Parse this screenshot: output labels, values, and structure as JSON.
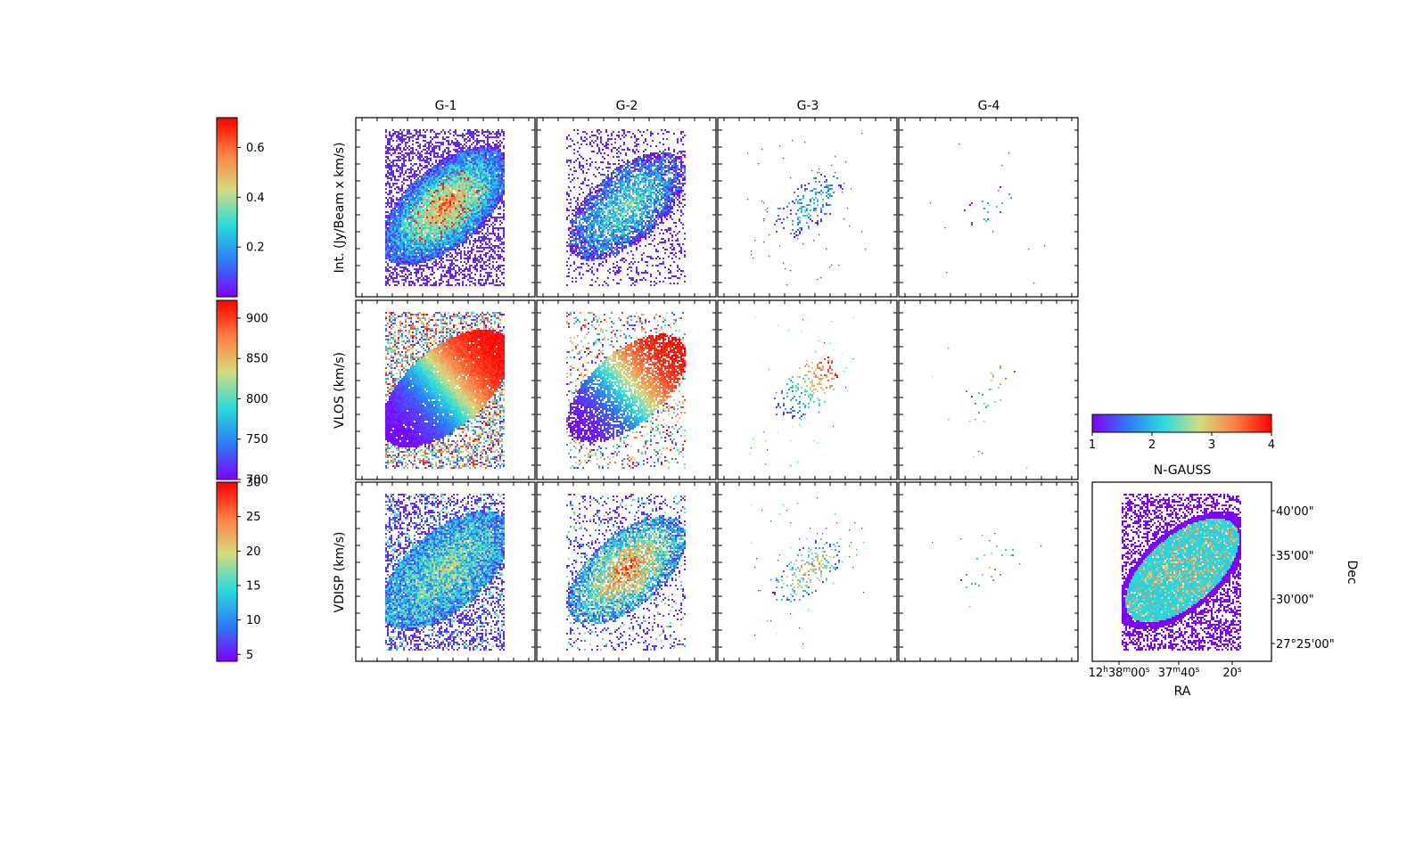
{
  "chart_data": {
    "type": "heatmap",
    "column_titles": [
      "G-1",
      "G-2",
      "G-3",
      "G-4"
    ],
    "row_labels": [
      "Int. (Jy/Beam x km/s)",
      "VLOS (km/s)",
      "VDISP (km/s)"
    ],
    "colorbars": [
      {
        "row": "Int. (Jy/Beam x km/s)",
        "range": [
          0.0,
          0.72
        ],
        "ticks": [
          "0.2",
          "0.4",
          "0.6"
        ],
        "tick_values": [
          0.2,
          0.4,
          0.6
        ]
      },
      {
        "row": "VLOS (km/s)",
        "range": [
          700,
          922
        ],
        "ticks": [
          "700",
          "750",
          "800",
          "850",
          "900"
        ],
        "tick_values": [
          700,
          750,
          800,
          850,
          900
        ]
      },
      {
        "row": "VDISP (km/s)",
        "range": [
          4,
          30
        ],
        "ticks": [
          "5",
          "10",
          "15",
          "20",
          "25",
          "30"
        ],
        "tick_values": [
          5,
          10,
          15,
          20,
          25,
          30
        ]
      }
    ],
    "ngauss": {
      "colorbar_label": "N-GAUSS",
      "range": [
        1,
        4
      ],
      "ticks": [
        "1",
        "2",
        "3",
        "4"
      ],
      "tick_values": [
        1,
        2,
        3,
        4
      ],
      "xlabel": "RA",
      "ylabel": "Dec",
      "x_ticks": [
        "12h38m00s",
        "37m40s",
        "20s"
      ],
      "x_ticks_display": [
        {
          "base": "12",
          "s1": "h",
          "m": "38",
          "s2": "m",
          "rest": "00",
          "s3": "s"
        },
        {
          "base": "37",
          "s1": "m",
          "m": "40",
          "s2": "s",
          "rest": "",
          "s3": ""
        },
        {
          "base": "20",
          "s1": "s",
          "m": "",
          "s2": "",
          "rest": "",
          "s3": ""
        }
      ],
      "y_ticks": [
        "40'00\"",
        "35'00\"",
        "30'00\"",
        "27°25'00\""
      ]
    },
    "colormap": "rainbow",
    "colormap_stops": [
      "#8000ff",
      "#2c7cf6",
      "#2adcdc",
      "#d4dc7f",
      "#ff7e41",
      "#ff0000"
    ]
  }
}
